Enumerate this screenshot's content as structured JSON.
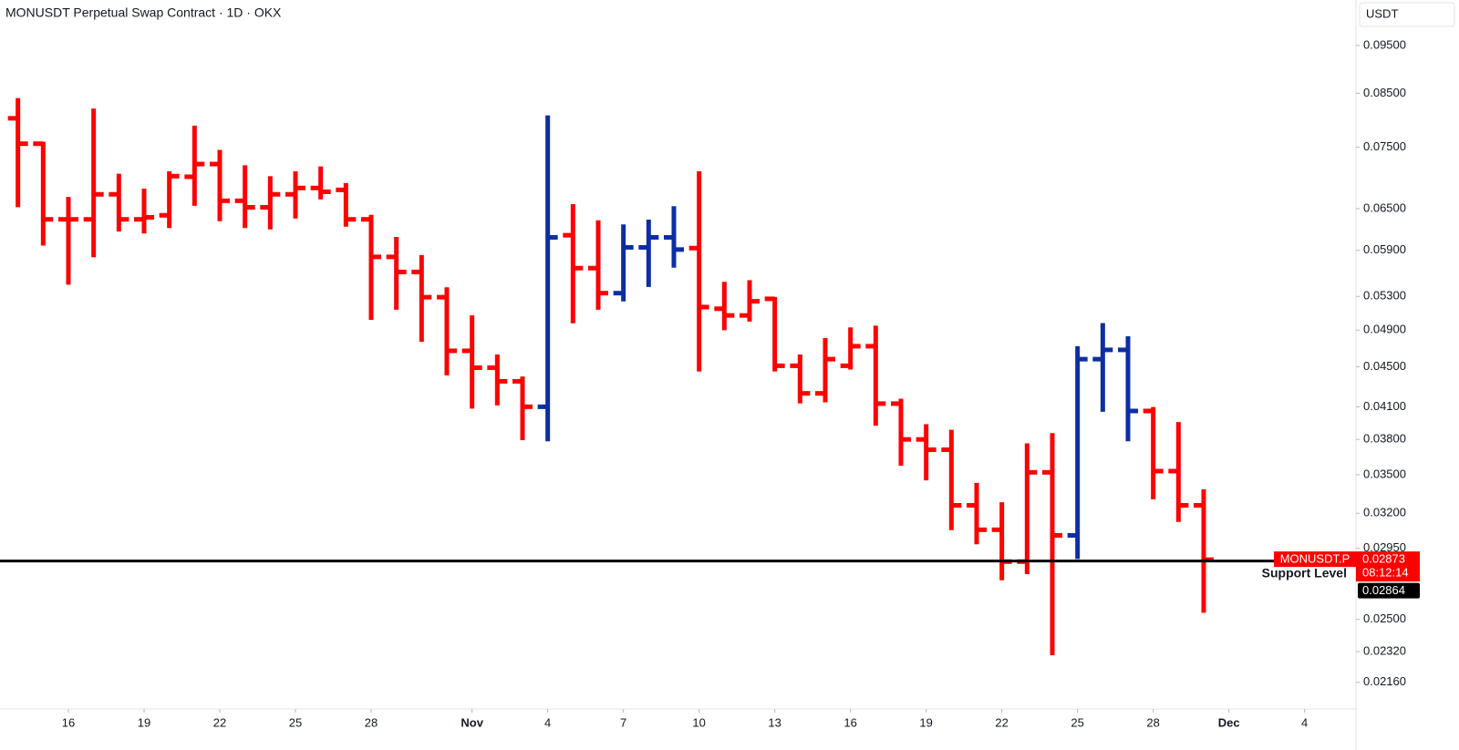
{
  "chart_data": {
    "type": "ohlc",
    "title": "MONUSDT Perpetual Swap Contract · 1D · OKX",
    "currency": "USDT",
    "log_scale": true,
    "ylim": [
      0.0203,
      0.1056
    ],
    "yticks": [
      {
        "value": 0.095,
        "label": "0.09500"
      },
      {
        "value": 0.085,
        "label": "0.08500"
      },
      {
        "value": 0.075,
        "label": "0.07500"
      },
      {
        "value": 0.065,
        "label": "0.06500"
      },
      {
        "value": 0.059,
        "label": "0.05900"
      },
      {
        "value": 0.053,
        "label": "0.05300"
      },
      {
        "value": 0.049,
        "label": "0.04900"
      },
      {
        "value": 0.045,
        "label": "0.04500"
      },
      {
        "value": 0.041,
        "label": "0.04100"
      },
      {
        "value": 0.038,
        "label": "0.03800"
      },
      {
        "value": 0.035,
        "label": "0.03500"
      },
      {
        "value": 0.032,
        "label": "0.03200"
      },
      {
        "value": 0.0295,
        "label": "0.02950"
      },
      {
        "value": 0.025,
        "label": "0.02500"
      },
      {
        "value": 0.0232,
        "label": "0.02320"
      },
      {
        "value": 0.0216,
        "label": "0.02160"
      }
    ],
    "xlim": [
      "10-13",
      "12-06"
    ],
    "xticks": [
      {
        "value": "10-16",
        "label": "16"
      },
      {
        "value": "10-19",
        "label": "19"
      },
      {
        "value": "10-22",
        "label": "22"
      },
      {
        "value": "10-25",
        "label": "25"
      },
      {
        "value": "10-28",
        "label": "28"
      },
      {
        "value": "11-01",
        "label": "Nov"
      },
      {
        "value": "11-04",
        "label": "4"
      },
      {
        "value": "11-07",
        "label": "7"
      },
      {
        "value": "11-10",
        "label": "10"
      },
      {
        "value": "11-13",
        "label": "13"
      },
      {
        "value": "11-16",
        "label": "16"
      },
      {
        "value": "11-19",
        "label": "19"
      },
      {
        "value": "11-22",
        "label": "22"
      },
      {
        "value": "11-25",
        "label": "25"
      },
      {
        "value": "11-28",
        "label": "28"
      },
      {
        "value": "12-01",
        "label": "Dec"
      },
      {
        "value": "12-04",
        "label": "4"
      }
    ],
    "x": [
      "10-14",
      "10-15",
      "10-16",
      "10-17",
      "10-18",
      "10-19",
      "10-20",
      "10-21",
      "10-22",
      "10-23",
      "10-24",
      "10-25",
      "10-26",
      "10-27",
      "10-28",
      "10-29",
      "10-30",
      "10-31",
      "11-01",
      "11-02",
      "11-03",
      "11-04",
      "11-05",
      "11-06",
      "11-07",
      "11-08",
      "11-09",
      "11-10",
      "11-11",
      "11-12",
      "11-13",
      "11-14",
      "11-15",
      "11-16",
      "11-17",
      "11-18",
      "11-19",
      "11-20",
      "11-21",
      "11-22",
      "11-23",
      "11-24",
      "11-25",
      "11-26",
      "11-27",
      "11-28",
      "11-29",
      "11-30"
    ],
    "open": [
      0.0802,
      0.0756,
      0.0634,
      0.0634,
      0.0672,
      0.0634,
      0.064,
      0.07,
      0.0721,
      0.0662,
      0.0652,
      0.0672,
      0.0682,
      0.0679,
      0.0634,
      0.0581,
      0.0561,
      0.0529,
      0.0467,
      0.0449,
      0.0435,
      0.041,
      0.0611,
      0.0566,
      0.0534,
      0.0594,
      0.0608,
      0.0593,
      0.0515,
      0.0507,
      0.0527,
      0.0451,
      0.0423,
      0.0451,
      0.0472,
      0.0413,
      0.038,
      0.0371,
      0.0326,
      0.0308,
      0.0286,
      0.0352,
      0.0304,
      0.0458,
      0.0468,
      0.0406,
      0.0353,
      0.0326
    ],
    "high": [
      0.0837,
      0.0756,
      0.0665,
      0.0817,
      0.0702,
      0.0678,
      0.0706,
      0.0785,
      0.0742,
      0.0716,
      0.0698,
      0.0706,
      0.0714,
      0.0687,
      0.0638,
      0.0606,
      0.0581,
      0.0539,
      0.0505,
      0.0461,
      0.0438,
      0.0804,
      0.0654,
      0.063,
      0.0624,
      0.0631,
      0.0651,
      0.0706,
      0.0546,
      0.0548,
      0.0527,
      0.0461,
      0.0479,
      0.0491,
      0.0493,
      0.0416,
      0.0392,
      0.0387,
      0.0342,
      0.0327,
      0.0375,
      0.0384,
      0.047,
      0.0496,
      0.0481,
      0.0408,
      0.0394,
      0.0337
    ],
    "low": [
      0.0655,
      0.0599,
      0.0547,
      0.0583,
      0.0619,
      0.0616,
      0.0624,
      0.0657,
      0.0634,
      0.0624,
      0.0622,
      0.0638,
      0.0667,
      0.0626,
      0.0504,
      0.0516,
      0.0479,
      0.0443,
      0.041,
      0.0413,
      0.0381,
      0.038,
      0.05,
      0.0516,
      0.0526,
      0.0544,
      0.0569,
      0.0447,
      0.0492,
      0.0502,
      0.0447,
      0.0415,
      0.0416,
      0.0449,
      0.0394,
      0.0359,
      0.0347,
      0.0309,
      0.0299,
      0.0275,
      0.0279,
      0.0231,
      0.0289,
      0.0407,
      0.038,
      0.0332,
      0.0315,
      0.0255
    ],
    "close": [
      0.0756,
      0.0634,
      0.0634,
      0.0672,
      0.0634,
      0.0637,
      0.0701,
      0.0721,
      0.0662,
      0.0652,
      0.0672,
      0.0682,
      0.0676,
      0.0634,
      0.0581,
      0.0561,
      0.0529,
      0.0467,
      0.0449,
      0.0435,
      0.041,
      0.0608,
      0.0566,
      0.0534,
      0.0594,
      0.0608,
      0.0591,
      0.0517,
      0.0507,
      0.0524,
      0.0451,
      0.0423,
      0.0458,
      0.0472,
      0.0413,
      0.038,
      0.0371,
      0.0326,
      0.0308,
      0.0286,
      0.0352,
      0.0304,
      0.0458,
      0.0468,
      0.0406,
      0.0353,
      0.0326,
      0.02873
    ],
    "colors": [
      "#ff0000",
      "#ff0000",
      "#ff0000",
      "#ff0000",
      "#ff0000",
      "#ff0000",
      "#ff0000",
      "#ff0000",
      "#ff0000",
      "#ff0000",
      "#ff0000",
      "#ff0000",
      "#ff0000",
      "#ff0000",
      "#ff0000",
      "#ff0000",
      "#ff0000",
      "#ff0000",
      "#ff0000",
      "#ff0000",
      "#ff0000",
      "#0d2ea3",
      "#ff0000",
      "#ff0000",
      "#0d2ea3",
      "#0d2ea3",
      "#0d2ea3",
      "#ff0000",
      "#ff0000",
      "#ff0000",
      "#ff0000",
      "#ff0000",
      "#ff0000",
      "#ff0000",
      "#ff0000",
      "#ff0000",
      "#ff0000",
      "#ff0000",
      "#ff0000",
      "#ff0000",
      "#ff0000",
      "#ff0000",
      "#0d2ea3",
      "#0d2ea3",
      "#0d2ea3",
      "#ff0000",
      "#ff0000",
      "#ff0000"
    ],
    "last_price": {
      "name": "MONUSDT.P",
      "value": 0.02873,
      "countdown": "08:12:14",
      "color": "#ff0000"
    },
    "support": {
      "label": "Support Level",
      "value": 0.02864,
      "color": "#000000",
      "label_color": "#0d2ea3"
    }
  }
}
